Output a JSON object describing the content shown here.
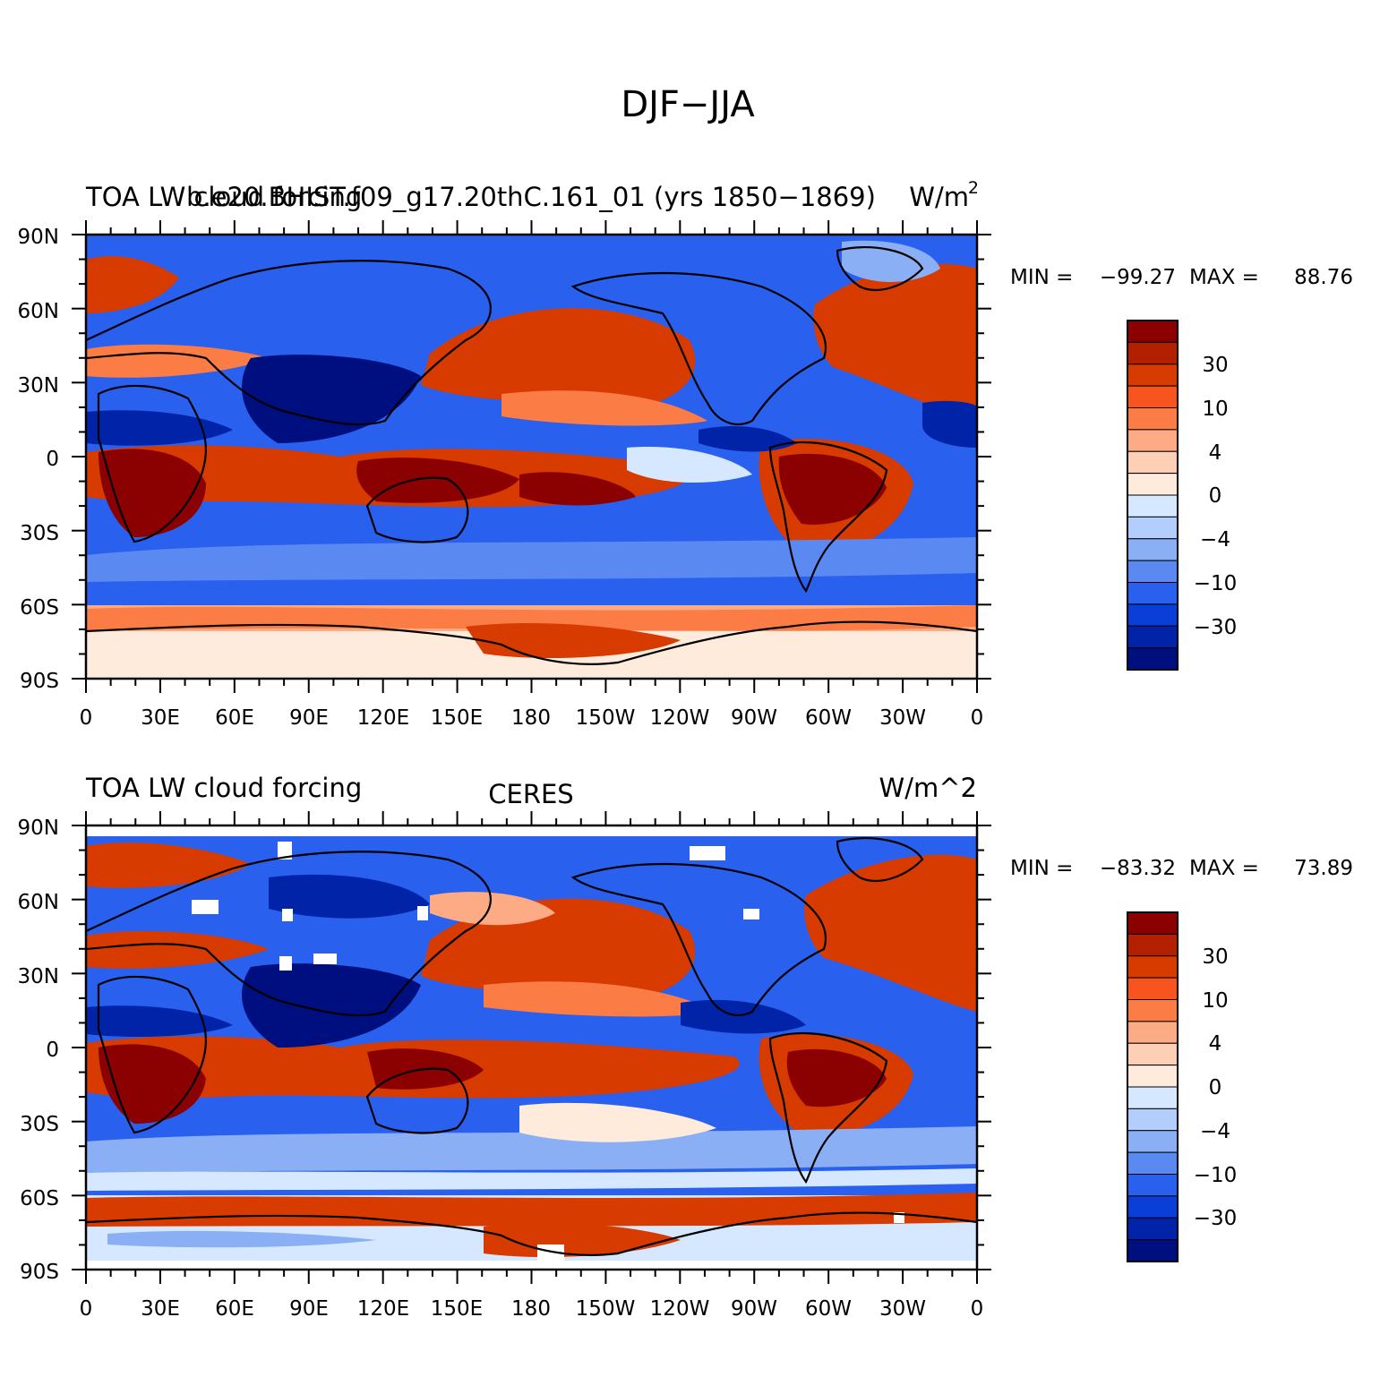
{
  "figure": {
    "title": "DJF−JJA"
  },
  "panels": [
    {
      "id": "model",
      "left_label": "TOA LW cloud forcing",
      "center_label": "b.e20.BHIST.f09_g17.20thC.161_01 (yrs 1850−1869)",
      "right_label": "W/m",
      "right_label_sup": "2",
      "stats": {
        "min_label": "MIN =",
        "min": "−99.27",
        "max_label": "MAX =",
        "max": "88.76"
      }
    },
    {
      "id": "obs",
      "left_label": "TOA LW cloud forcing",
      "center_label": "CERES",
      "right_label": "W/m^2",
      "right_label_sup": "",
      "stats": {
        "min_label": "MIN =",
        "min": "−83.32",
        "max_label": "MAX =",
        "max": "73.89"
      }
    }
  ],
  "axes": {
    "lat_labels": [
      "90N",
      "60N",
      "30N",
      "0",
      "30S",
      "60S",
      "90S"
    ],
    "lon_labels": [
      "0",
      "30E",
      "60E",
      "90E",
      "120E",
      "150E",
      "180",
      "150W",
      "120W",
      "90W",
      "60W",
      "30W",
      "0"
    ]
  },
  "colorbar": {
    "colors": [
      "#8b0000",
      "#b22000",
      "#d83b00",
      "#f7541f",
      "#fb7c45",
      "#fcab84",
      "#fdcfb4",
      "#feebdc",
      "#d6e8ff",
      "#b3cdfc",
      "#8aaff5",
      "#5b89f2",
      "#2a60ee",
      "#0a3ed8",
      "#0023a8",
      "#000f80"
    ],
    "labels": [
      "30",
      "10",
      "4",
      "0",
      "−4",
      "−10",
      "−30"
    ]
  },
  "map_colors": {
    "deep_red": "#8b0000",
    "red": "#d83b00",
    "orange": "#fb7c45",
    "salmon": "#fcab84",
    "cream": "#feebdc",
    "pale_blue": "#d6e8ff",
    "light_blue": "#8aaff5",
    "blue": "#2a60ee",
    "deep_blue": "#0023a8",
    "navy": "#000f80",
    "missing": "#ffffff"
  }
}
